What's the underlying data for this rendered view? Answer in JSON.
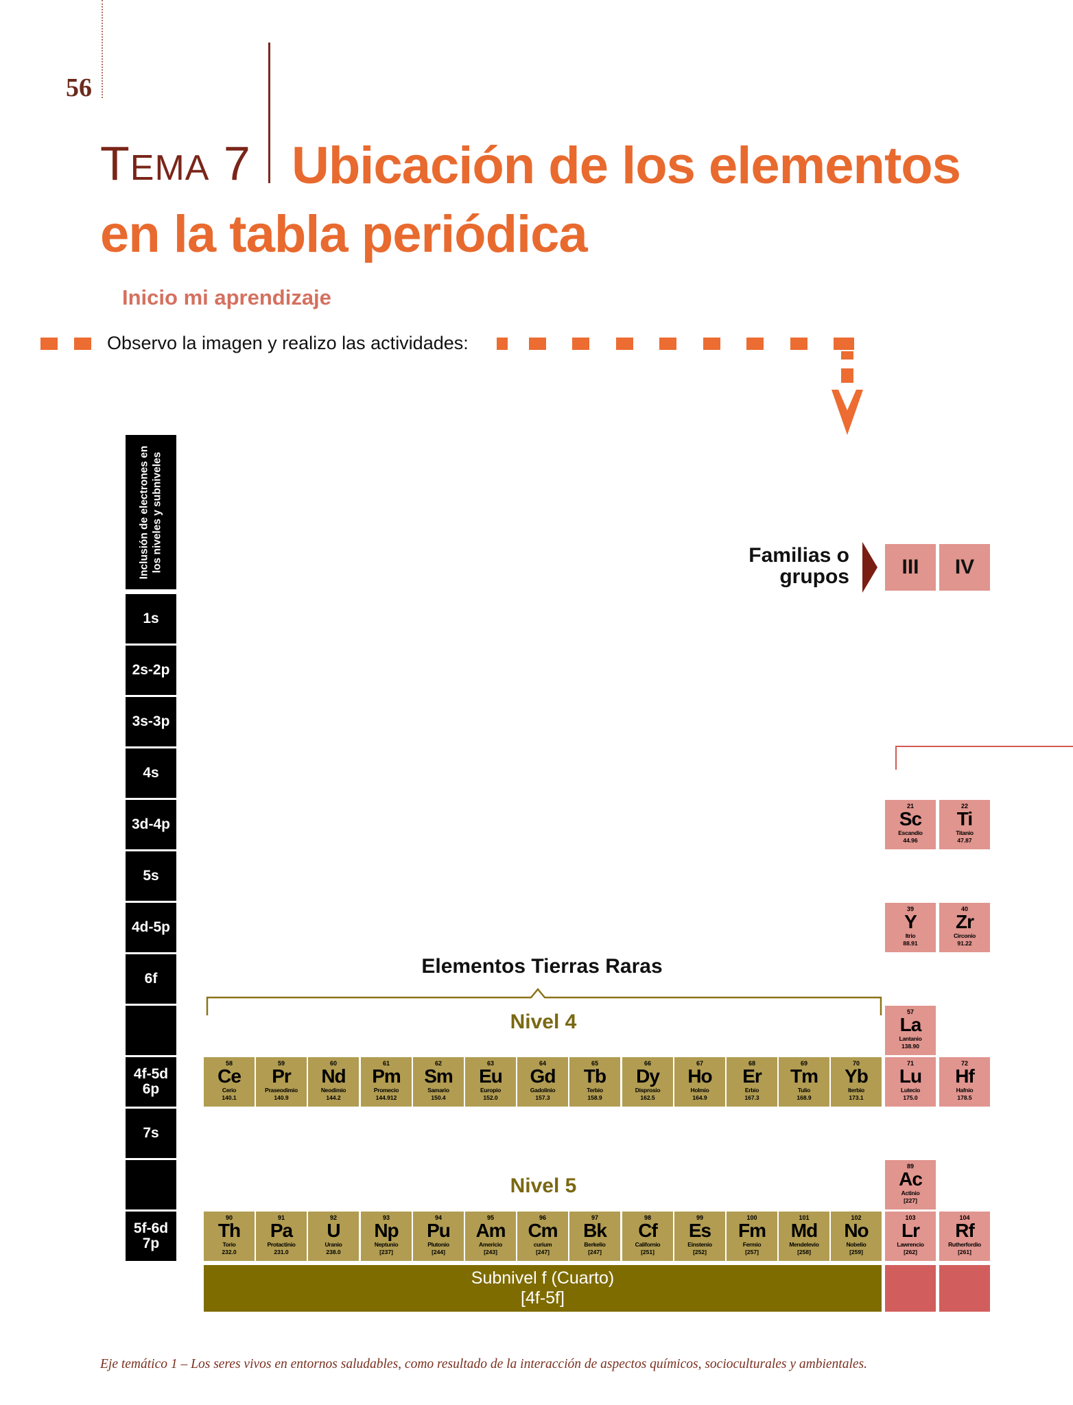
{
  "page_number": "56",
  "tema": {
    "first_letter": "T",
    "rest": "EMA",
    "number": "7"
  },
  "title_line1": "Ubicación de los elementos",
  "title_line2": "en la tabla periódica",
  "subtitle": "Inicio mi aprendizaje",
  "instruction": "Observo la imagen y realizo las actividades:",
  "level_header": "Inclusión de electrones en los niveles y subniveles",
  "levels": [
    "1s",
    "2s-2p",
    "3s-3p",
    "4s",
    "3d-4p",
    "5s",
    "4d-5p",
    "6f",
    "",
    "4f-5d 6p",
    "7s",
    "",
    "5f-6d 7p"
  ],
  "families_label": "Familias o grupos",
  "groups": [
    "III",
    "IV"
  ],
  "rare_earth_label": "Elementos Tierras Raras",
  "nivel4_label": "Nivel 4",
  "nivel5_label": "Nivel 5",
  "subnivel_label_line1": "Subnivel f (Cuarto)",
  "subnivel_label_line2": "[4f-5f]",
  "lanthanides": [
    {
      "num": "58",
      "sym": "Ce",
      "name": "Cerio",
      "mass": "140.1"
    },
    {
      "num": "59",
      "sym": "Pr",
      "name": "Praseodimio",
      "mass": "140.9"
    },
    {
      "num": "60",
      "sym": "Nd",
      "name": "Neodimio",
      "mass": "144.2"
    },
    {
      "num": "61",
      "sym": "Pm",
      "name": "Promecio",
      "mass": "144.912"
    },
    {
      "num": "62",
      "sym": "Sm",
      "name": "Samario",
      "mass": "150.4"
    },
    {
      "num": "63",
      "sym": "Eu",
      "name": "Europio",
      "mass": "152.0"
    },
    {
      "num": "64",
      "sym": "Gd",
      "name": "Gadolinio",
      "mass": "157.3"
    },
    {
      "num": "65",
      "sym": "Tb",
      "name": "Terbio",
      "mass": "158.9"
    },
    {
      "num": "66",
      "sym": "Dy",
      "name": "Disprosio",
      "mass": "162.5"
    },
    {
      "num": "67",
      "sym": "Ho",
      "name": "Holmio",
      "mass": "164.9"
    },
    {
      "num": "68",
      "sym": "Er",
      "name": "Erbio",
      "mass": "167.3"
    },
    {
      "num": "69",
      "sym": "Tm",
      "name": "Tulio",
      "mass": "168.9"
    },
    {
      "num": "70",
      "sym": "Yb",
      "name": "Iterbio",
      "mass": "173.1"
    }
  ],
  "actinides": [
    {
      "num": "90",
      "sym": "Th",
      "name": "Torio",
      "mass": "232.0"
    },
    {
      "num": "91",
      "sym": "Pa",
      "name": "Protactinio",
      "mass": "231.0"
    },
    {
      "num": "92",
      "sym": "U",
      "name": "Uranio",
      "mass": "238.0"
    },
    {
      "num": "93",
      "sym": "Np",
      "name": "Neptunio",
      "mass": "[237]"
    },
    {
      "num": "94",
      "sym": "Pu",
      "name": "Plutonio",
      "mass": "[244]"
    },
    {
      "num": "95",
      "sym": "Am",
      "name": "Americio",
      "mass": "[243]"
    },
    {
      "num": "96",
      "sym": "Cm",
      "name": "curium",
      "mass": "[247]"
    },
    {
      "num": "97",
      "sym": "Bk",
      "name": "Berkelio",
      "mass": "[247]"
    },
    {
      "num": "98",
      "sym": "Cf",
      "name": "Californio",
      "mass": "[251]"
    },
    {
      "num": "99",
      "sym": "Es",
      "name": "Einstenio",
      "mass": "[252]"
    },
    {
      "num": "100",
      "sym": "Fm",
      "name": "Fermio",
      "mass": "[257]"
    },
    {
      "num": "101",
      "sym": "Md",
      "name": "Mendelevio",
      "mass": "[258]"
    },
    {
      "num": "102",
      "sym": "No",
      "name": "Nobelio",
      "mass": "[259]"
    }
  ],
  "group3": [
    {
      "num": "21",
      "sym": "Sc",
      "name": "Escandio",
      "mass": "44.96"
    },
    {
      "num": "39",
      "sym": "Y",
      "name": "Itrio",
      "mass": "88.91"
    },
    {
      "num": "57",
      "sym": "La",
      "name": "Lantanio",
      "mass": "138.90"
    },
    {
      "num": "71",
      "sym": "Lu",
      "name": "Lutecio",
      "mass": "175.0"
    },
    {
      "num": "89",
      "sym": "Ac",
      "name": "Actinio",
      "mass": "[227]"
    },
    {
      "num": "103",
      "sym": "Lr",
      "name": "Lawrencio",
      "mass": "[262]"
    }
  ],
  "group4": [
    {
      "num": "22",
      "sym": "Ti",
      "name": "Titanio",
      "mass": "47.87"
    },
    {
      "num": "40",
      "sym": "Zr",
      "name": "Circonio",
      "mass": "91.22"
    },
    {
      "num": "72",
      "sym": "Hf",
      "name": "Hafnio",
      "mass": "178.5"
    },
    {
      "num": "104",
      "sym": "Rf",
      "name": "Rutherfordio",
      "mass": "[261]"
    }
  ],
  "footer": "Eje temático 1 – Los seres vivos en entornos saludables, como resultado de la interacción de aspectos químicos, socioculturales y ambientales.",
  "colors": {
    "title": "#e86a2f",
    "tema": "#7a2519",
    "f_block": "#b19c52",
    "groups": "#e0958e",
    "subnivel": "#7f6c00"
  }
}
